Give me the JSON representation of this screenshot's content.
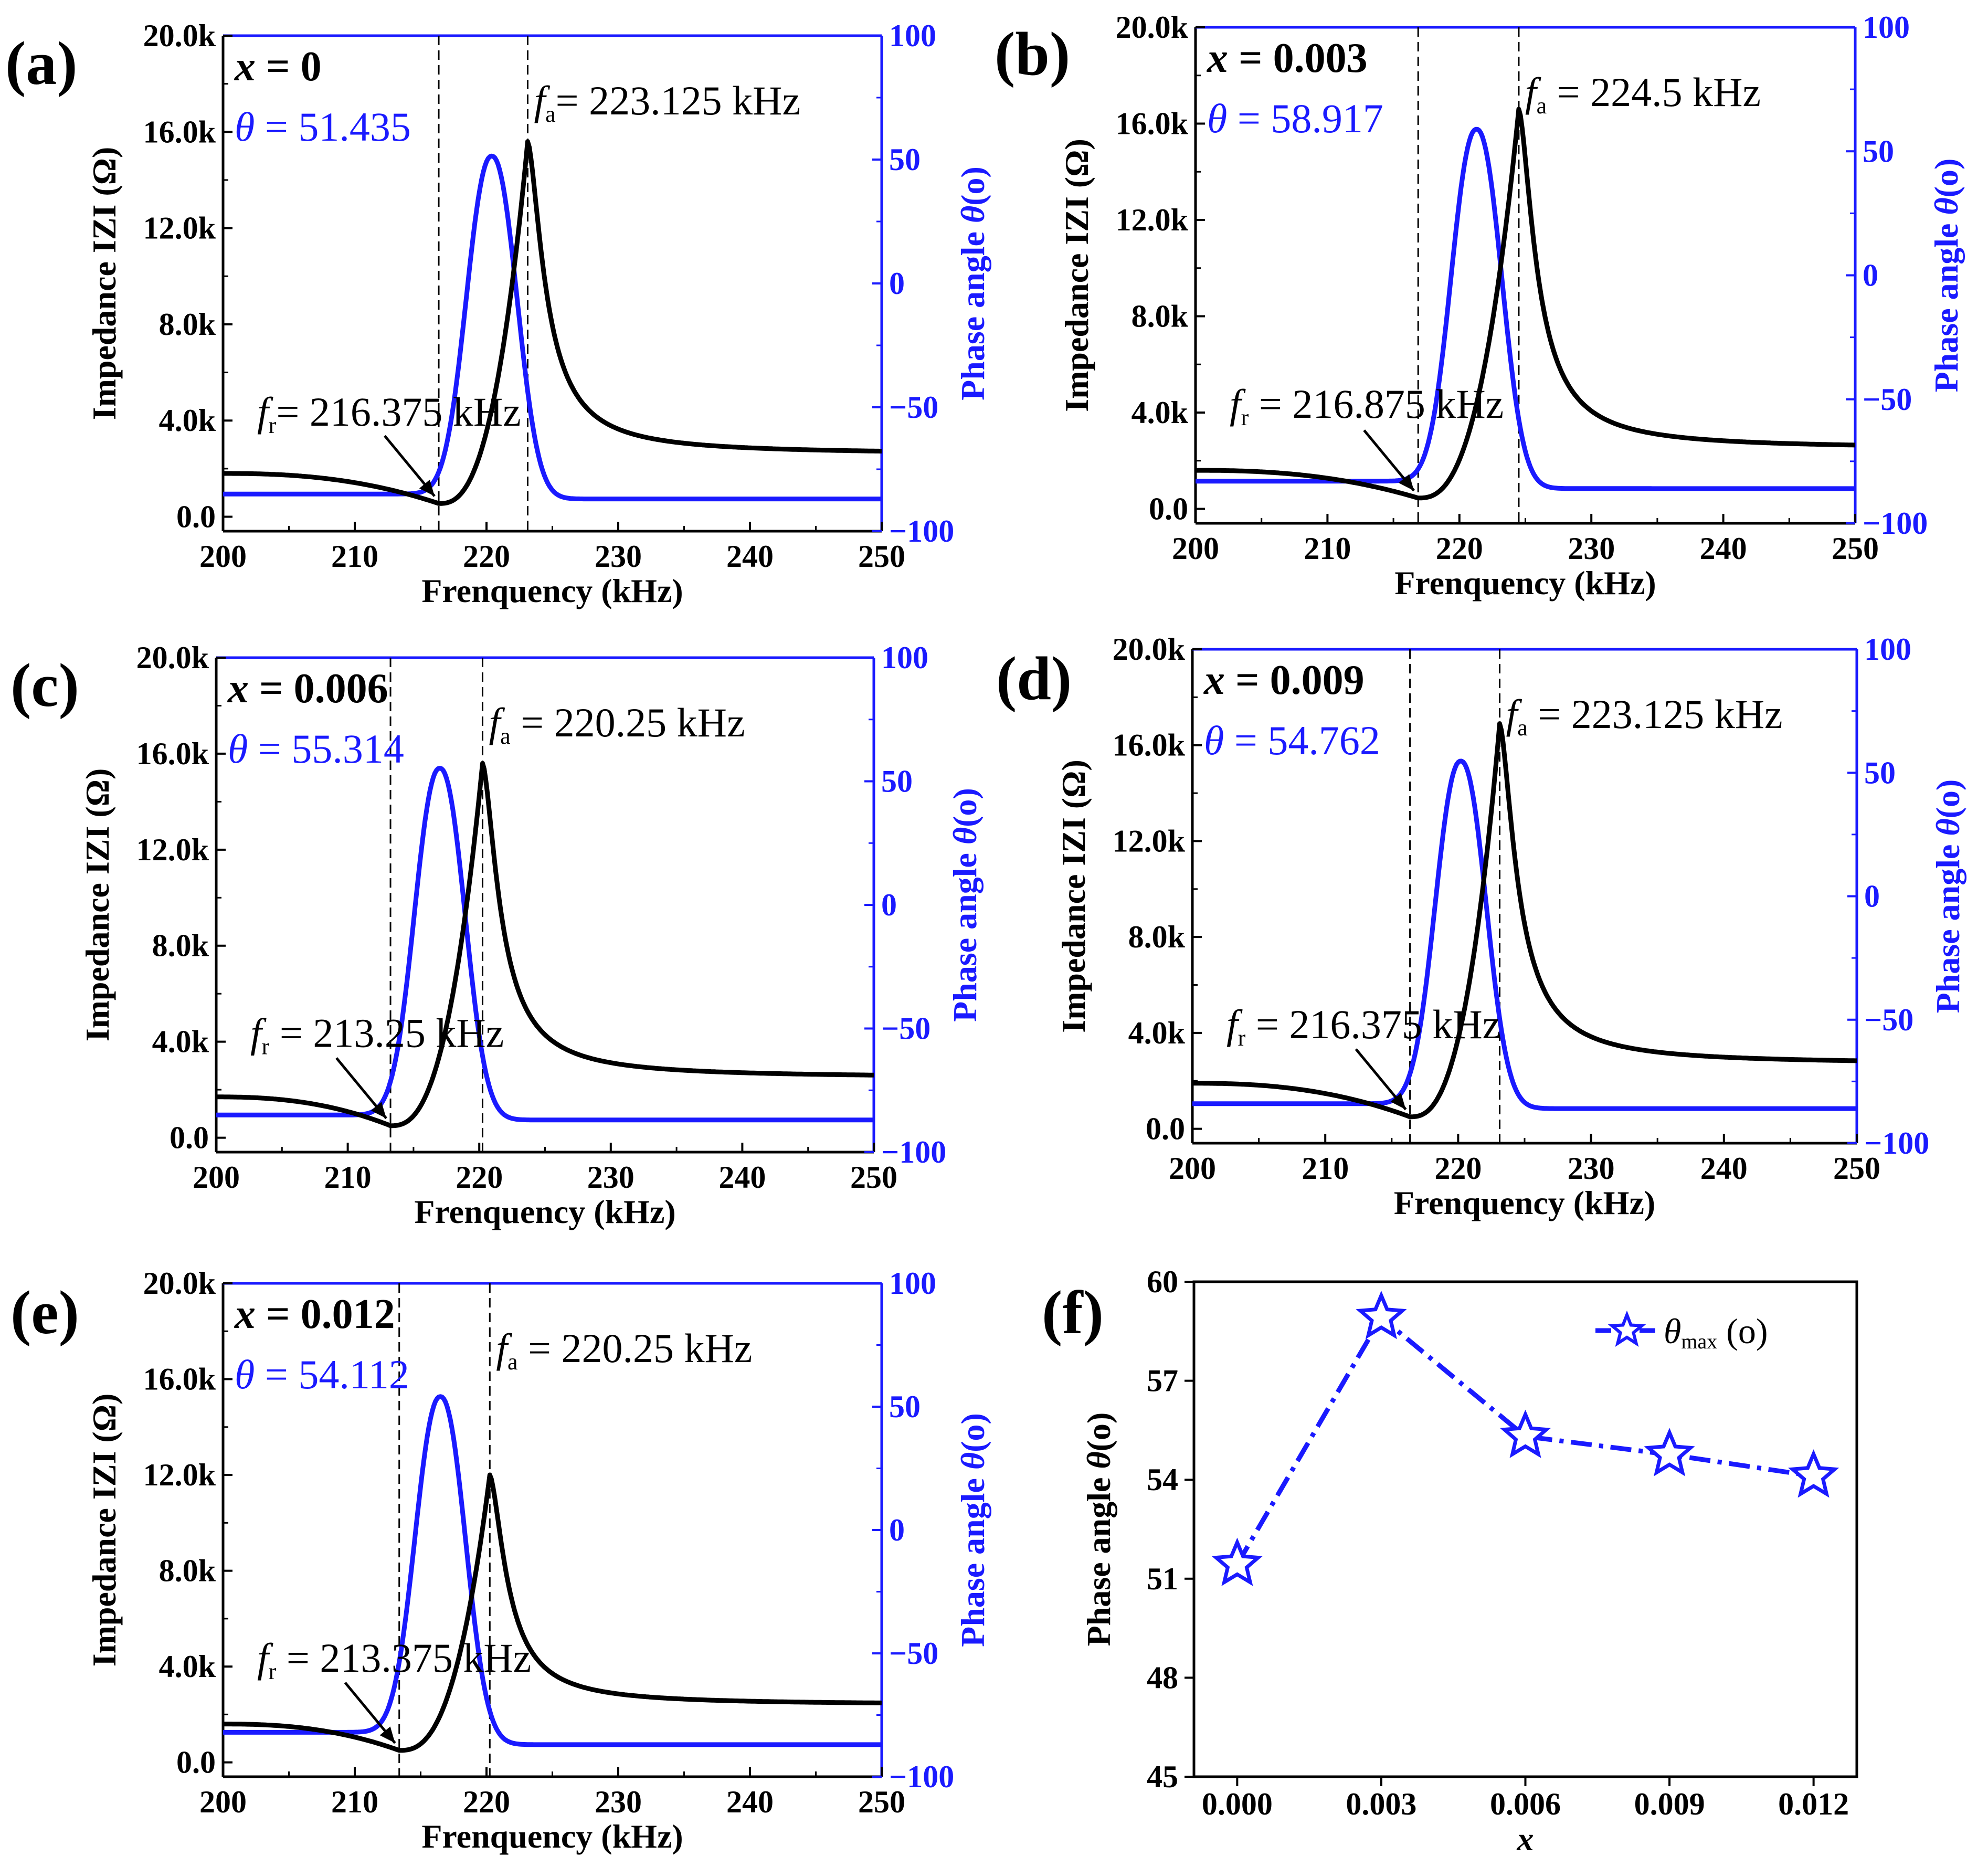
{
  "chart_data": [
    {
      "type": "line",
      "panel_label": "(a)",
      "x_label": "x",
      "x_value": " = 0",
      "theta_label": "θ",
      "theta_value": " = 51.435",
      "fa_label": "f",
      "fa_sub": "a",
      "fa_value": "= 223.125 kHz",
      "fr_label": "f",
      "fr_sub": "r",
      "fr_value": "= 216.375 kHz",
      "xlabel": "Frenquency (kHz)",
      "ylabel_left": "Impedance IZI (Ω)",
      "ylabel_right_text": "Phase angle ",
      "ylabel_right_theta": "θ",
      "ylabel_right_unit": "(o)",
      "xlim": [
        200,
        250
      ],
      "y_left_lim": [
        -0.6,
        20.0
      ],
      "y_right_lim": [
        -100,
        100
      ],
      "x_ticks": [
        "200",
        "210",
        "220",
        "230",
        "240",
        "250"
      ],
      "y_left_ticks": [
        "0.0",
        "4.0k",
        "8.0k",
        "12.0k",
        "16.0k",
        "20.0k"
      ],
      "y_right_ticks": [
        "−100",
        "−50",
        "0",
        "50",
        "100"
      ],
      "f_r": 216.375,
      "f_a": 223.125,
      "theta_max": 51.435,
      "theta_peak_freq": 220.4,
      "z_peak": 15.6,
      "z_min": 0.55,
      "z_start": 1.8,
      "z_end": 2.6,
      "theta_base": -87,
      "theta_low_start": -85
    },
    {
      "type": "line",
      "panel_label": "(b)",
      "x_label": "x",
      "x_value": " = 0.003",
      "theta_label": "θ",
      "theta_value": " = 58.917",
      "fa_label": "f",
      "fa_sub": "a",
      "fa_value": " = 224.5 kHz",
      "fr_label": "f",
      "fr_sub": "r",
      "fr_value": " = 216.875 kHz",
      "xlabel": "Frenquency (kHz)",
      "ylabel_left": "Impedance IZI (Ω)",
      "ylabel_right_text": "Phase angle ",
      "ylabel_right_theta": "θ",
      "ylabel_right_unit": "(o)",
      "xlim": [
        200,
        250
      ],
      "y_left_lim": [
        -0.6,
        20.0
      ],
      "y_right_lim": [
        -100,
        100
      ],
      "x_ticks": [
        "200",
        "210",
        "220",
        "230",
        "240",
        "250"
      ],
      "y_left_ticks": [
        "0.0",
        "4.0k",
        "8.0k",
        "12.0k",
        "16.0k",
        "20.0k"
      ],
      "y_right_ticks": [
        "−100",
        "−50",
        "0",
        "50",
        "100"
      ],
      "f_r": 216.875,
      "f_a": 224.5,
      "theta_max": 58.917,
      "theta_peak_freq": 221.3,
      "z_peak": 16.6,
      "z_min": 0.45,
      "z_start": 1.6,
      "z_end": 2.5,
      "theta_base": -86,
      "theta_low_start": -83
    },
    {
      "type": "line",
      "panel_label": "(c)",
      "x_label": "x",
      "x_value": " = 0.006",
      "theta_label": "θ",
      "theta_value": " = 55.314",
      "fa_label": "f",
      "fa_sub": "a",
      "fa_value": " = 220.25 kHz",
      "fr_label": "f",
      "fr_sub": "r",
      "fr_value": " = 213.25 kHz",
      "xlabel": "Frenquency (kHz)",
      "ylabel_left": "Impedance IZI (Ω)",
      "ylabel_right_text": "Phase angle ",
      "ylabel_right_theta": "θ",
      "ylabel_right_unit": "(o)",
      "xlim": [
        200,
        250
      ],
      "y_left_lim": [
        -0.6,
        20.0
      ],
      "y_right_lim": [
        -100,
        100
      ],
      "x_ticks": [
        "200",
        "210",
        "220",
        "230",
        "240",
        "250"
      ],
      "y_left_ticks": [
        "0.0",
        "4.0k",
        "8.0k",
        "12.0k",
        "16.0k",
        "20.0k"
      ],
      "y_right_ticks": [
        "−100",
        "−50",
        "0",
        "50",
        "100"
      ],
      "f_r": 213.25,
      "f_a": 220.25,
      "theta_max": 55.314,
      "theta_peak_freq": 217.0,
      "z_peak": 15.6,
      "z_min": 0.5,
      "z_start": 1.7,
      "z_end": 2.5,
      "theta_base": -87,
      "theta_low_start": -85
    },
    {
      "type": "line",
      "panel_label": "(d)",
      "x_label": "x",
      "x_value": " = 0.009",
      "theta_label": "θ",
      "theta_value": " = 54.762",
      "fa_label": "f",
      "fa_sub": "a",
      "fa_value": " = 223.125 kHz",
      "fr_label": "f",
      "fr_sub": "r",
      "fr_value": " = 216.375 kHz",
      "xlabel": "Frenquency (kHz)",
      "ylabel_left": "Impedance IZI (Ω)",
      "ylabel_right_text": "Phase angle ",
      "ylabel_right_theta": "θ",
      "ylabel_right_unit": "(o)",
      "xlim": [
        200,
        250
      ],
      "y_left_lim": [
        -0.6,
        20.0
      ],
      "y_right_lim": [
        -100,
        100
      ],
      "x_ticks": [
        "200",
        "210",
        "220",
        "230",
        "240",
        "250"
      ],
      "y_left_ticks": [
        "0.0",
        "4.0k",
        "8.0k",
        "12.0k",
        "16.0k",
        "20.0k"
      ],
      "y_right_ticks": [
        "−100",
        "−50",
        "0",
        "50",
        "100"
      ],
      "f_r": 216.375,
      "f_a": 223.125,
      "theta_max": 54.762,
      "theta_peak_freq": 220.2,
      "z_peak": 16.9,
      "z_min": 0.5,
      "z_start": 1.9,
      "z_end": 2.7,
      "theta_base": -86,
      "theta_low_start": -84
    },
    {
      "type": "line",
      "panel_label": "(e)",
      "x_label": "x",
      "x_value": " = 0.012",
      "theta_label": "θ",
      "theta_value": " = 54.112",
      "fa_label": "f",
      "fa_sub": "a",
      "fa_value": " = 220.25 kHz",
      "fr_label": "f",
      "fr_sub": "r",
      "fr_value": " = 213.375 kHz",
      "xlabel": "Frenquency (kHz)",
      "ylabel_left": "Impedance IZI (Ω)",
      "ylabel_right_text": "Phase angle ",
      "ylabel_right_theta": "θ",
      "ylabel_right_unit": "(o)",
      "xlim": [
        200,
        250
      ],
      "y_left_lim": [
        -0.6,
        20.0
      ],
      "y_right_lim": [
        -100,
        100
      ],
      "x_ticks": [
        "200",
        "210",
        "220",
        "230",
        "240",
        "250"
      ],
      "y_left_ticks": [
        "0.0",
        "4.0k",
        "8.0k",
        "12.0k",
        "16.0k",
        "20.0k"
      ],
      "y_right_ticks": [
        "−100",
        "−50",
        "0",
        "50",
        "100"
      ],
      "f_r": 213.375,
      "f_a": 220.25,
      "theta_max": 54.112,
      "theta_peak_freq": 216.5,
      "z_peak": 12.0,
      "z_min": 0.5,
      "z_start": 1.6,
      "z_end": 2.4,
      "theta_base": -87,
      "theta_low_start": -82
    },
    {
      "type": "line",
      "panel_label": "(f)",
      "xlabel": "x",
      "ylabel_text": "Phase angle ",
      "ylabel_theta": "θ",
      "ylabel_unit": "(o)",
      "legend_theta": "θ",
      "legend_sub": "max",
      "legend_unit": " (o)",
      "x_ticks": [
        "0.000",
        "0.003",
        "0.006",
        "0.009",
        "0.012"
      ],
      "x": [
        0.0,
        0.003,
        0.006,
        0.009,
        0.012
      ],
      "y": [
        51.435,
        58.917,
        55.314,
        54.762,
        54.112
      ],
      "y_ticks": [
        "45",
        "48",
        "51",
        "54",
        "57",
        "60"
      ],
      "ylim": [
        45,
        60
      ],
      "xlim": [
        -0.0009,
        0.0129
      ],
      "color": "#1a1aff"
    }
  ],
  "colors": {
    "impedance": "#000000",
    "phase": "#1a1aff",
    "axis_right": "#1a1aff"
  }
}
